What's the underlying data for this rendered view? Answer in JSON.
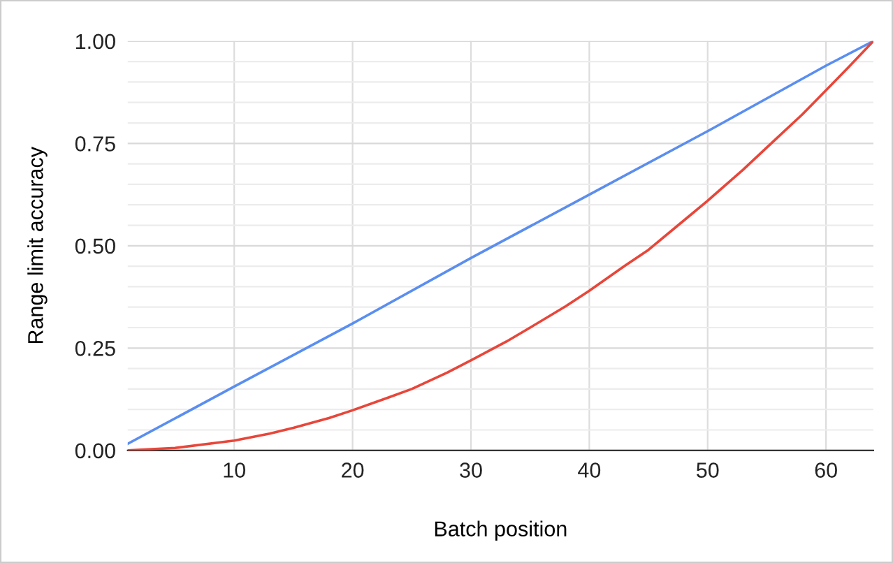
{
  "chart_data": {
    "type": "line",
    "xlabel": "Batch position",
    "ylabel": "Range limit accuracy",
    "xlim": [
      1,
      64
    ],
    "xticks": [
      10,
      20,
      30,
      40,
      50,
      60
    ],
    "ylim": [
      0,
      1
    ],
    "yticks": [
      {
        "value": 0,
        "label": "0.00"
      },
      {
        "value": 0.05,
        "label": null
      },
      {
        "value": 0.1,
        "label": null
      },
      {
        "value": 0.15,
        "label": null
      },
      {
        "value": 0.2,
        "label": null
      },
      {
        "value": 0.25,
        "label": "0.25"
      },
      {
        "value": 0.3,
        "label": null
      },
      {
        "value": 0.35,
        "label": null
      },
      {
        "value": 0.4,
        "label": null
      },
      {
        "value": 0.45,
        "label": null
      },
      {
        "value": 0.5,
        "label": "0.50"
      },
      {
        "value": 0.55,
        "label": null
      },
      {
        "value": 0.6,
        "label": null
      },
      {
        "value": 0.65,
        "label": null
      },
      {
        "value": 0.7,
        "label": null
      },
      {
        "value": 0.75,
        "label": "0.75"
      },
      {
        "value": 0.8,
        "label": null
      },
      {
        "value": 0.85,
        "label": null
      },
      {
        "value": 0.9,
        "label": null
      },
      {
        "value": 0.95,
        "label": null
      },
      {
        "value": 1,
        "label": "1.00"
      }
    ],
    "grid": true,
    "marker": "none",
    "line_style": "solid",
    "series": [
      {
        "color": "#5a8ef0",
        "x": [
          1,
          10,
          20,
          30,
          40,
          50,
          60,
          64
        ],
        "values": [
          0.016,
          0.156,
          0.31,
          0.47,
          0.625,
          0.78,
          0.94,
          1.0
        ]
      },
      {
        "color": "#e8463a",
        "x": [
          1,
          5,
          10,
          13,
          15,
          18,
          20,
          23,
          25,
          28,
          30,
          33,
          35,
          38,
          40,
          43,
          45,
          48,
          50,
          53,
          55,
          58,
          60,
          62,
          64
        ],
        "values": [
          0.0,
          0.006,
          0.024,
          0.041,
          0.055,
          0.079,
          0.098,
          0.129,
          0.15,
          0.19,
          0.22,
          0.266,
          0.3,
          0.352,
          0.39,
          0.451,
          0.49,
          0.562,
          0.61,
          0.686,
          0.74,
          0.821,
          0.88,
          0.939,
          1.0
        ]
      }
    ]
  }
}
